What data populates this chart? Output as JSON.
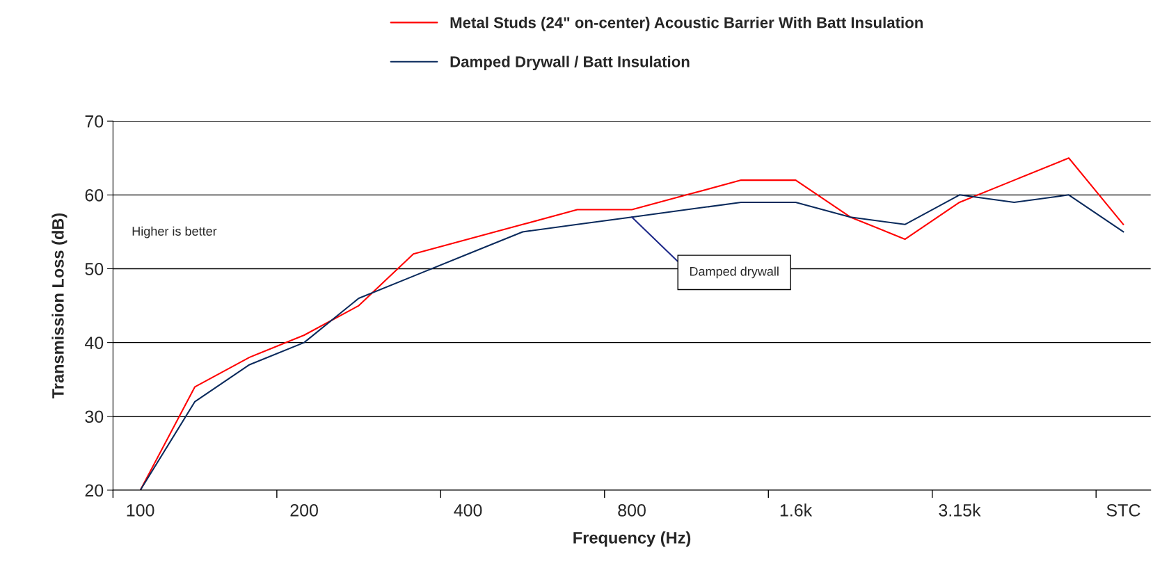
{
  "chart_data": {
    "type": "line",
    "xlabel": "Frequency (Hz)",
    "ylabel": "Transmission Loss (dB)",
    "categories": [
      "100",
      null,
      null,
      "200",
      null,
      null,
      "400",
      null,
      null,
      "800",
      null,
      null,
      "1.6k",
      null,
      null,
      "3.15k",
      null,
      null,
      "STC"
    ],
    "series": [
      {
        "name": "Metal Studs (24\" on-center) Acoustic Barrier With Batt Insulation",
        "color": "#ff0000",
        "values": [
          20,
          34,
          38,
          41,
          45,
          52,
          54,
          56,
          58,
          58,
          60,
          62,
          62,
          57,
          54,
          59,
          62,
          65,
          56
        ]
      },
      {
        "name": "Damped Drywall / Batt Insulation",
        "color": "#0a2a5c",
        "values": [
          20,
          32,
          37,
          40,
          46,
          49,
          52,
          55,
          56,
          57,
          58,
          59,
          59,
          57,
          56,
          60,
          59,
          60,
          55
        ]
      }
    ],
    "ylim": [
      20,
      70
    ],
    "yticks": [
      20,
      30,
      40,
      50,
      60,
      70
    ],
    "grid": "y",
    "legend": "top",
    "marker": "none",
    "line_style": "solid",
    "annotations": [
      "Higher is better",
      {
        "text": "Damped drywall",
        "x": "800",
        "y": 57
      }
    ]
  }
}
